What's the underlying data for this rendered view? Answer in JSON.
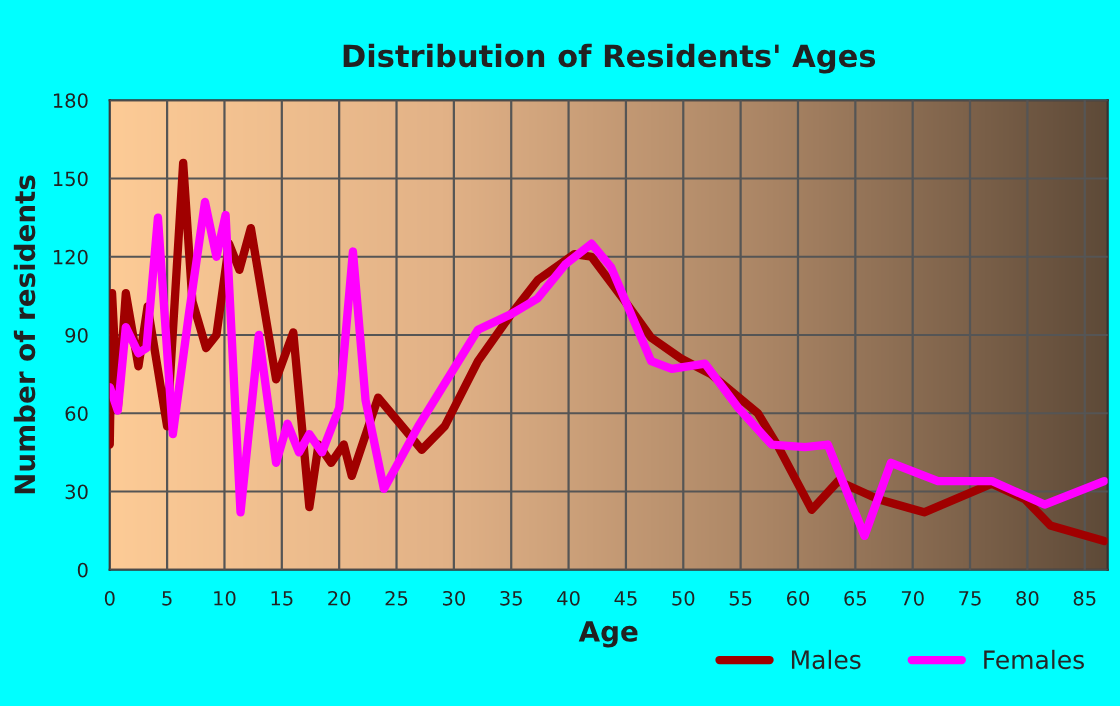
{
  "chart_data": {
    "type": "line",
    "title": "Distribution of Residents' Ages",
    "xlabel": "Age",
    "ylabel": "Number of residents",
    "xlim": [
      0,
      87
    ],
    "ylim": [
      0,
      180
    ],
    "xticks": [
      0,
      5,
      10,
      15,
      20,
      25,
      30,
      35,
      40,
      45,
      50,
      55,
      60,
      65,
      70,
      75,
      80,
      85
    ],
    "yticks": [
      0,
      30,
      60,
      90,
      120,
      150,
      180
    ],
    "grid": true,
    "legend": "bottom right",
    "line_style": "solid",
    "marker": "none",
    "series": [
      {
        "name": "Males",
        "color": "#a00000",
        "x": [
          0,
          0.2,
          0.7,
          1.4,
          2.5,
          3.3,
          5.0,
          6.4,
          7.2,
          8.4,
          9.3,
          10.4,
          11.3,
          12.3,
          14.5,
          16,
          17.4,
          18.2,
          19.3,
          20.4,
          21.1,
          23.4,
          27.2,
          29.2,
          32.1,
          35,
          37.3,
          40.5,
          42,
          44.9,
          47.2,
          49.8,
          52.4,
          56.5,
          58.3,
          61.2,
          63.5,
          67,
          71,
          76.9,
          79.8,
          82,
          86.7
        ],
        "values": [
          48,
          106,
          62,
          106,
          78,
          101,
          55,
          156,
          103,
          85,
          90,
          125,
          115,
          131,
          73,
          91,
          24,
          48,
          41,
          48,
          36,
          66,
          46,
          55,
          80,
          98,
          111,
          121,
          120,
          103,
          89,
          81,
          75,
          60,
          47,
          23,
          34,
          27,
          22,
          33,
          27,
          17,
          11
        ]
      },
      {
        "name": "Females",
        "color": "#ff00ff",
        "x": [
          0,
          0.7,
          1.4,
          2.5,
          3.2,
          4.2,
          5.5,
          6.9,
          8.3,
          9.3,
          10.1,
          11.4,
          13,
          14.5,
          15.5,
          16.5,
          17.4,
          18.5,
          20,
          21.2,
          22.3,
          23.9,
          26.9,
          32.1,
          35,
          37.3,
          39.7,
          42,
          43.7,
          47.2,
          49,
          51.9,
          54.8,
          57.7,
          60.6,
          62.6,
          65.8,
          68.1,
          72.2,
          76.9,
          81.5,
          86.7
        ],
        "values": [
          70,
          61,
          93,
          83,
          85,
          135,
          52,
          98,
          141,
          120,
          136,
          22,
          90,
          41,
          56,
          45,
          52,
          45,
          62,
          122,
          65,
          31,
          55,
          92,
          98,
          104,
          117,
          125,
          116,
          80,
          77,
          79,
          62,
          48,
          47,
          48,
          13,
          41,
          34,
          34,
          25,
          34
        ]
      }
    ]
  }
}
